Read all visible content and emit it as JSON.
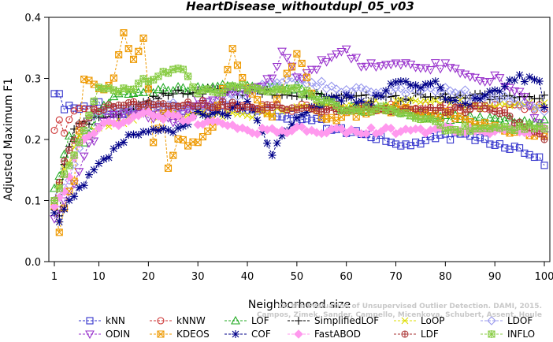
{
  "chart_data": {
    "type": "line",
    "title": "HeartDisease_withoutdupl_05_v03",
    "xlabel": "Neighborhood size",
    "ylabel": "Adjusted Maximum F1",
    "xlim": [
      1,
      100
    ],
    "ylim": [
      0.0,
      0.4
    ],
    "xticks": [
      1,
      10,
      20,
      30,
      40,
      50,
      60,
      70,
      80,
      90,
      100
    ],
    "yticks": [
      "0.0",
      "0.1",
      "0.2",
      "0.3",
      "0.4"
    ],
    "grid": false,
    "legend_position": "bottom",
    "watermark": [
      "Campos, Zimek, Sander, Campello, Micenkova, Schubert, Assent, Houle",
      "On the Evaluation of Unsupervised Outlier Detection. DAMI, 2015."
    ],
    "series": [
      {
        "name": "kNN",
        "color": "#3333cc",
        "marker": "square",
        "keypoints": [
          [
            1,
            0.275
          ],
          [
            2,
            0.275
          ],
          [
            3,
            0.252
          ],
          [
            6,
            0.252
          ],
          [
            8,
            0.252
          ],
          [
            10,
            0.265
          ],
          [
            12,
            0.24
          ],
          [
            20,
            0.252
          ],
          [
            45,
            0.252
          ],
          [
            46,
            0.24
          ],
          [
            55,
            0.23
          ],
          [
            56,
            0.215
          ],
          [
            62,
            0.215
          ],
          [
            66,
            0.205
          ],
          [
            70,
            0.19
          ],
          [
            75,
            0.195
          ],
          [
            80,
            0.205
          ],
          [
            85,
            0.205
          ],
          [
            90,
            0.195
          ],
          [
            95,
            0.185
          ],
          [
            98,
            0.175
          ],
          [
            100,
            0.162
          ]
        ]
      },
      {
        "name": "kNNW",
        "color": "#cc3333",
        "marker": "circle",
        "keypoints": [
          [
            1,
            0.215
          ],
          [
            2,
            0.232
          ],
          [
            3,
            0.215
          ],
          [
            5,
            0.252
          ],
          [
            10,
            0.252
          ],
          [
            40,
            0.252
          ],
          [
            60,
            0.252
          ],
          [
            100,
            0.252
          ]
        ]
      },
      {
        "name": "LOF",
        "color": "#22aa22",
        "marker": "triangle",
        "keypoints": [
          [
            1,
            0.12
          ],
          [
            2,
            0.14
          ],
          [
            4,
            0.2
          ],
          [
            7,
            0.2
          ],
          [
            10,
            0.24
          ],
          [
            13,
            0.27
          ],
          [
            16,
            0.28
          ],
          [
            20,
            0.282
          ],
          [
            40,
            0.285
          ],
          [
            50,
            0.285
          ],
          [
            60,
            0.25
          ],
          [
            70,
            0.25
          ],
          [
            75,
            0.24
          ],
          [
            80,
            0.235
          ],
          [
            90,
            0.232
          ],
          [
            100,
            0.232
          ]
        ]
      },
      {
        "name": "SimplifiedLOF",
        "color": "#000000",
        "marker": "plus",
        "keypoints": [
          [
            1,
            0.085
          ],
          [
            2,
            0.075
          ],
          [
            3,
            0.155
          ],
          [
            5,
            0.22
          ],
          [
            8,
            0.23
          ],
          [
            10,
            0.235
          ],
          [
            15,
            0.245
          ],
          [
            20,
            0.265
          ],
          [
            25,
            0.275
          ],
          [
            35,
            0.28
          ],
          [
            45,
            0.275
          ],
          [
            55,
            0.27
          ],
          [
            65,
            0.268
          ],
          [
            70,
            0.268
          ],
          [
            73,
            0.27
          ]
        ]
      },
      {
        "name": "LoOP",
        "color": "#dddd00",
        "marker": "x",
        "keypoints": [
          [
            1,
            0.1
          ],
          [
            3,
            0.15
          ],
          [
            6,
            0.2
          ],
          [
            10,
            0.22
          ],
          [
            15,
            0.23
          ],
          [
            20,
            0.24
          ],
          [
            30,
            0.24
          ],
          [
            40,
            0.24
          ],
          [
            50,
            0.25
          ],
          [
            60,
            0.255
          ],
          [
            70,
            0.26
          ],
          [
            80,
            0.26
          ],
          [
            90,
            0.255
          ],
          [
            100,
            0.255
          ]
        ]
      },
      {
        "name": "LDOF",
        "color": "#9999ee",
        "marker": "diamond",
        "keypoints": [
          [
            1,
            0.1
          ],
          [
            4,
            0.13
          ],
          [
            7,
            0.22
          ],
          [
            10,
            0.25
          ],
          [
            15,
            0.25
          ],
          [
            20,
            0.26
          ],
          [
            30,
            0.25
          ],
          [
            40,
            0.28
          ],
          [
            50,
            0.3
          ],
          [
            60,
            0.28
          ],
          [
            70,
            0.28
          ],
          [
            80,
            0.28
          ],
          [
            90,
            0.27
          ],
          [
            100,
            0.25
          ]
        ]
      },
      {
        "name": "ODIN",
        "color": "#9933cc",
        "marker": "triangle-down",
        "keypoints": [
          [
            1,
            0.07
          ],
          [
            3,
            0.1
          ],
          [
            6,
            0.15
          ],
          [
            8,
            0.19
          ],
          [
            12,
            0.24
          ],
          [
            20,
            0.24
          ],
          [
            26,
            0.23
          ],
          [
            30,
            0.26
          ],
          [
            40,
            0.28
          ],
          [
            45,
            0.3
          ],
          [
            47,
            0.345
          ],
          [
            50,
            0.3
          ],
          [
            55,
            0.325
          ],
          [
            60,
            0.345
          ],
          [
            63,
            0.32
          ],
          [
            75,
            0.32
          ],
          [
            80,
            0.32
          ],
          [
            85,
            0.3
          ],
          [
            90,
            0.3
          ],
          [
            95,
            0.28
          ],
          [
            100,
            0.21
          ]
        ]
      },
      {
        "name": "KDEOS",
        "color": "#ee9900",
        "marker": "box-x",
        "keypoints": [
          [
            1,
            0.09
          ],
          [
            2,
            0.048
          ],
          [
            3,
            0.09
          ],
          [
            5,
            0.13
          ],
          [
            7,
            0.3
          ],
          [
            10,
            0.28
          ],
          [
            13,
            0.3
          ],
          [
            15,
            0.37
          ],
          [
            17,
            0.33
          ],
          [
            19,
            0.37
          ],
          [
            21,
            0.19
          ],
          [
            23,
            0.24
          ],
          [
            24,
            0.15
          ],
          [
            26,
            0.2
          ],
          [
            30,
            0.19
          ],
          [
            33,
            0.22
          ],
          [
            37,
            0.345
          ],
          [
            40,
            0.28
          ],
          [
            45,
            0.24
          ],
          [
            50,
            0.345
          ],
          [
            55,
            0.23
          ],
          [
            60,
            0.24
          ],
          [
            70,
            0.25
          ],
          [
            80,
            0.24
          ],
          [
            90,
            0.22
          ],
          [
            100,
            0.205
          ]
        ]
      },
      {
        "name": "COF",
        "color": "#000088",
        "marker": "asterisk",
        "keypoints": [
          [
            1,
            0.08
          ],
          [
            2,
            0.065
          ],
          [
            3,
            0.09
          ],
          [
            5,
            0.11
          ],
          [
            8,
            0.14
          ],
          [
            10,
            0.16
          ],
          [
            15,
            0.2
          ],
          [
            20,
            0.215
          ],
          [
            25,
            0.21
          ],
          [
            30,
            0.24
          ],
          [
            35,
            0.24
          ],
          [
            40,
            0.26
          ],
          [
            45,
            0.18
          ],
          [
            48,
            0.22
          ],
          [
            52,
            0.25
          ],
          [
            58,
            0.27
          ],
          [
            65,
            0.26
          ],
          [
            70,
            0.3
          ],
          [
            75,
            0.28
          ],
          [
            78,
            0.3
          ],
          [
            80,
            0.26
          ],
          [
            85,
            0.26
          ],
          [
            90,
            0.28
          ],
          [
            95,
            0.3
          ],
          [
            99,
            0.3
          ],
          [
            100,
            0.25
          ]
        ]
      },
      {
        "name": "FastABOD",
        "color": "#ff99ee",
        "marker": "diamond-filled",
        "keypoints": [
          [
            1,
            0.09
          ],
          [
            3,
            0.12
          ],
          [
            6,
            0.19
          ],
          [
            10,
            0.22
          ],
          [
            20,
            0.24
          ],
          [
            30,
            0.23
          ],
          [
            40,
            0.215
          ],
          [
            50,
            0.215
          ],
          [
            60,
            0.215
          ],
          [
            70,
            0.215
          ],
          [
            80,
            0.215
          ],
          [
            90,
            0.215
          ],
          [
            100,
            0.215
          ]
        ]
      },
      {
        "name": "LDF",
        "color": "#aa3333",
        "marker": "circle-plus",
        "keypoints": [
          [
            1,
            0.1
          ],
          [
            3,
            0.16
          ],
          [
            6,
            0.22
          ],
          [
            10,
            0.25
          ],
          [
            20,
            0.26
          ],
          [
            30,
            0.26
          ],
          [
            40,
            0.255
          ],
          [
            50,
            0.25
          ],
          [
            60,
            0.25
          ],
          [
            70,
            0.25
          ],
          [
            80,
            0.25
          ],
          [
            90,
            0.25
          ],
          [
            100,
            0.205
          ]
        ]
      },
      {
        "name": "INFLO",
        "color": "#88cc44",
        "marker": "star-box",
        "keypoints": [
          [
            1,
            0.1
          ],
          [
            3,
            0.14
          ],
          [
            6,
            0.2
          ],
          [
            10,
            0.28
          ],
          [
            15,
            0.28
          ],
          [
            20,
            0.3
          ],
          [
            26,
            0.32
          ],
          [
            30,
            0.28
          ],
          [
            40,
            0.285
          ],
          [
            50,
            0.28
          ],
          [
            60,
            0.25
          ],
          [
            70,
            0.25
          ],
          [
            80,
            0.22
          ],
          [
            90,
            0.215
          ],
          [
            100,
            0.22
          ]
        ]
      }
    ]
  }
}
